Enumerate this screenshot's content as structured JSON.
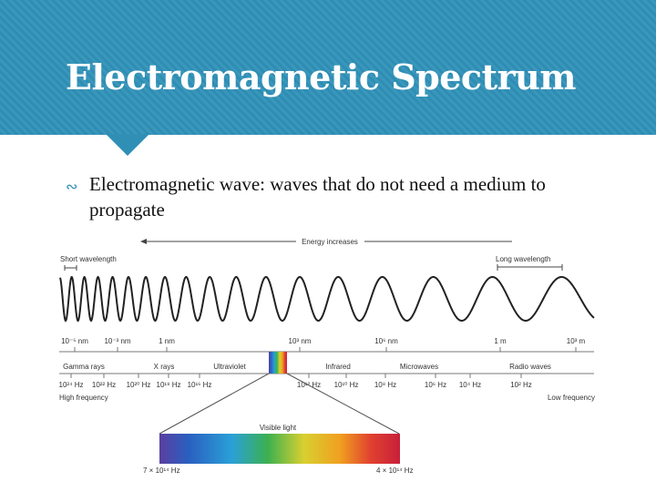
{
  "slide": {
    "title": "Electromagnetic Spectrum",
    "bullet_term": "Electromagnetic wave",
    "bullet_text": ": waves that do not need a medium to propagate",
    "accent": "#2e8fb5"
  },
  "figure": {
    "energy_label": "Energy increases",
    "short_label": "Short wavelength",
    "long_label": "Long wavelength",
    "wavelengths": [
      "10⁻⁵ nm",
      "10⁻³ nm",
      "1 nm",
      "10³ nm",
      "10⁶ nm",
      "1 m",
      "10³ m"
    ],
    "bands": [
      "Gamma rays",
      "X rays",
      "Ultraviolet",
      "Infrared",
      "Microwaves",
      "Radio waves"
    ],
    "frequencies": [
      "10²⁴ Hz",
      "10²² Hz",
      "10²⁰ Hz",
      "10¹⁸ Hz",
      "10¹⁶ Hz",
      "10¹² Hz",
      "10¹⁰ Hz",
      "10⁸ Hz",
      "10⁶ Hz",
      "10⁴ Hz",
      "10² Hz"
    ],
    "high_freq": "High frequency",
    "low_freq": "Low frequency",
    "visible_label": "Visible light",
    "visible_left": "7 × 10¹⁴ Hz",
    "visible_right": "4 × 10¹⁴ Hz"
  }
}
